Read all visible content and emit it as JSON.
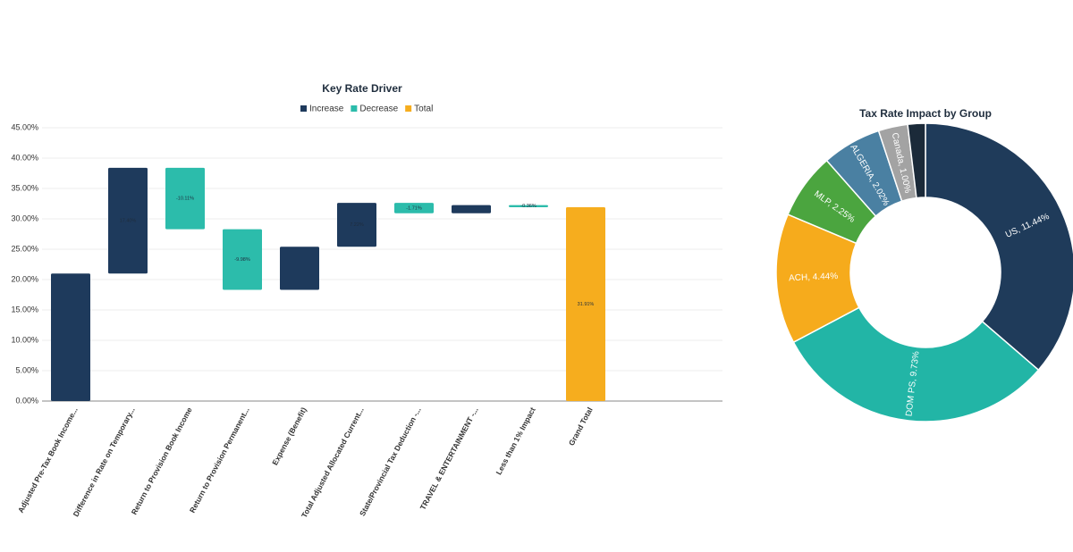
{
  "chart_data": [
    {
      "type": "waterfall",
      "title": "Key Rate Driver",
      "legend": [
        {
          "name": "Increase",
          "color": "#1e3a5c"
        },
        {
          "name": "Decrease",
          "color": "#2cbcab"
        },
        {
          "name": "Total",
          "color": "#f6ad1e"
        }
      ],
      "categories": [
        "Adjusted Pre-Tax Book Income...",
        "Difference in Rate on Temporary...",
        "Return to Provision Book Income",
        "Return to Provision Permanent...",
        "Expense (Benefit)",
        "Total Adjusted Allocated Current...",
        "State/Provincial Tax Deduction -...",
        "TRAVEL & ENTERTAINMENT -...",
        "Less than 1% Impact",
        "Grand Total"
      ],
      "measures": [
        "Increase",
        "Increase",
        "Decrease",
        "Decrease",
        "Increase",
        "Increase",
        "Decrease",
        "Increase",
        "Decrease",
        "Total"
      ],
      "values": [
        21.0,
        17.4,
        -10.11,
        -9.98,
        7.1,
        7.22,
        -1.71,
        1.35,
        -0.36,
        31.91
      ],
      "value_labels": [
        null,
        "17.40%",
        "-10.11%",
        "-9.98%",
        null,
        "7.22%",
        "-1.71%",
        null,
        "-0.36%",
        "31.91%"
      ],
      "ylim": [
        0,
        45
      ],
      "yticks": [
        {
          "value": 0,
          "label": "0.00%"
        },
        {
          "value": 5,
          "label": "5.00%"
        },
        {
          "value": 10,
          "label": "10.00%"
        },
        {
          "value": 15,
          "label": "15.00%"
        },
        {
          "value": 20,
          "label": "20.00%"
        },
        {
          "value": 25,
          "label": "25.00%"
        },
        {
          "value": 30,
          "label": "30.00%"
        },
        {
          "value": 35,
          "label": "35.00%"
        },
        {
          "value": 40,
          "label": "40.00%"
        },
        {
          "value": 45,
          "label": "45.00%"
        }
      ],
      "grid": true
    },
    {
      "type": "donut",
      "title": "Tax Rate Impact by Group",
      "values": [
        11.44,
        9.73,
        4.44,
        2.25,
        2.02,
        1.0,
        0.6
      ],
      "value_labels": [
        "US, 11.44%",
        "DOM PS, 9.73%",
        "ACH, 4.44%",
        "MLP, 2.25%",
        "ALGERIA, 2.02%",
        "Canada, 1.00%",
        null
      ],
      "colors": [
        "#1f3b5a",
        "#22b5a6",
        "#f6ab1c",
        "#4ba53f",
        "#4a80a2",
        "#a3a3a3",
        "#1b2a39"
      ]
    }
  ]
}
